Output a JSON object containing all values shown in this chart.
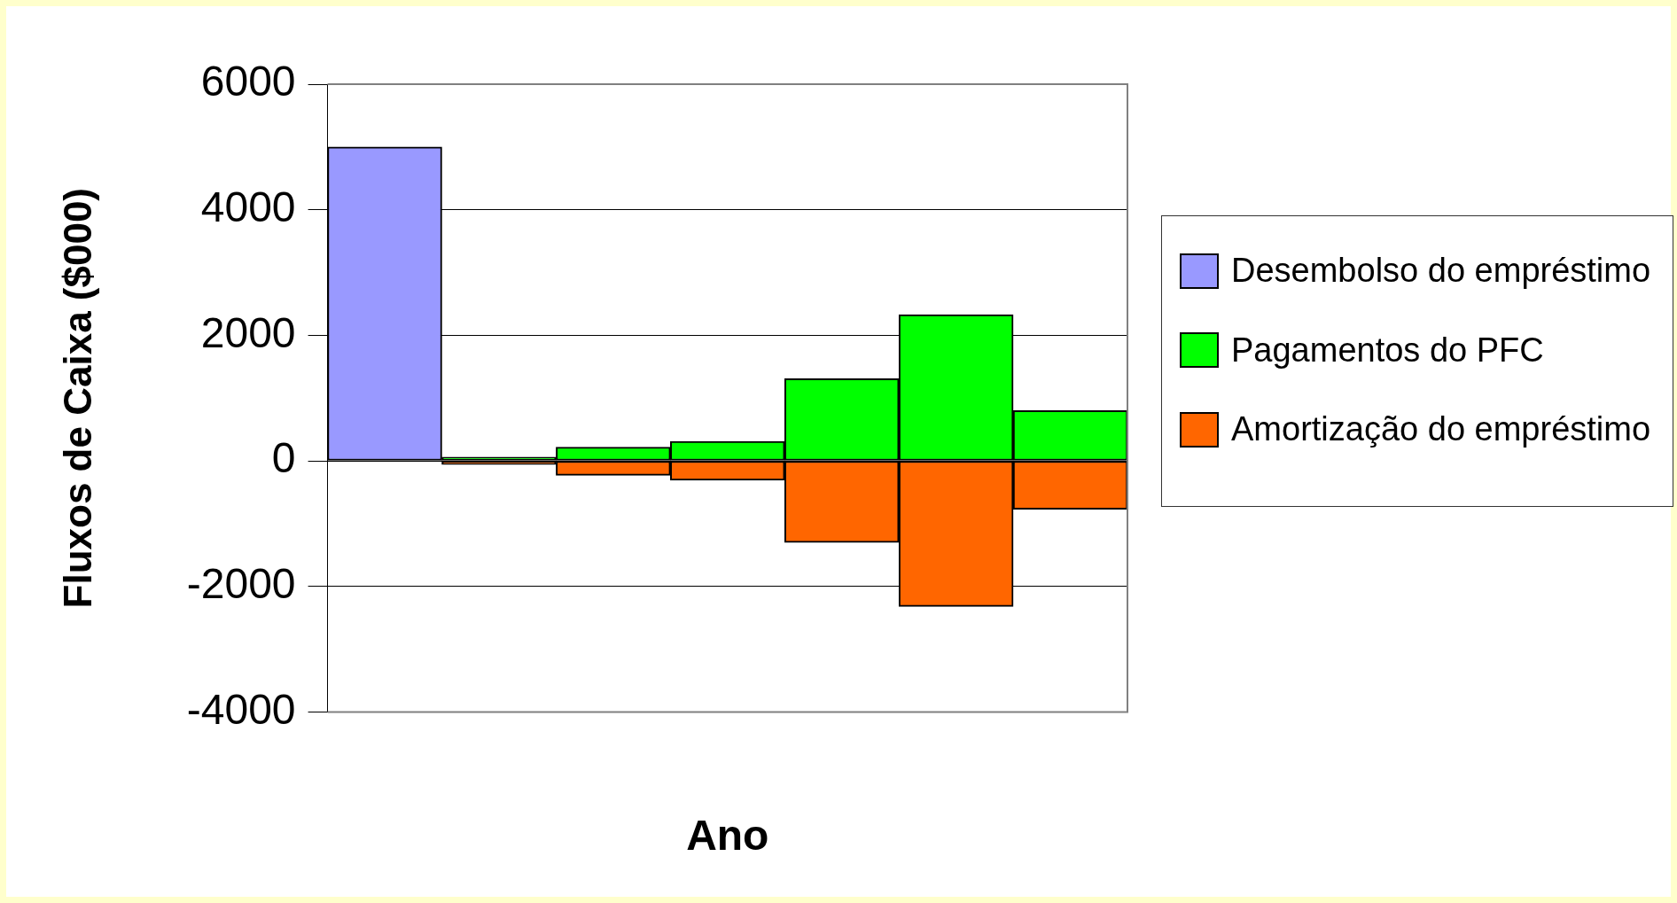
{
  "chart_data": {
    "type": "bar",
    "stacked": true,
    "xlabel": "Ano",
    "ylabel": "Fluxos de Caixa ($000)",
    "categories": [
      null,
      null,
      null,
      null,
      null,
      null,
      null
    ],
    "series": [
      {
        "name": "Desembolso do empréstimo",
        "color": "#9999ff",
        "values": [
          5000,
          null,
          null,
          null,
          null,
          null,
          null
        ]
      },
      {
        "name": "Pagamentos do PFC",
        "color": "#00ff00",
        "values": [
          null,
          60,
          220,
          310,
          1310,
          2330,
          800
        ]
      },
      {
        "name": "Amortização do empréstimo",
        "color": "#ff6600",
        "values": [
          null,
          -60,
          -230,
          -310,
          -1300,
          -2320,
          -770
        ]
      }
    ],
    "ylim": [
      -4000,
      6000
    ],
    "yticks": [
      -4000,
      -2000,
      0,
      2000,
      4000,
      6000
    ],
    "grid": "y",
    "legend": "right"
  }
}
